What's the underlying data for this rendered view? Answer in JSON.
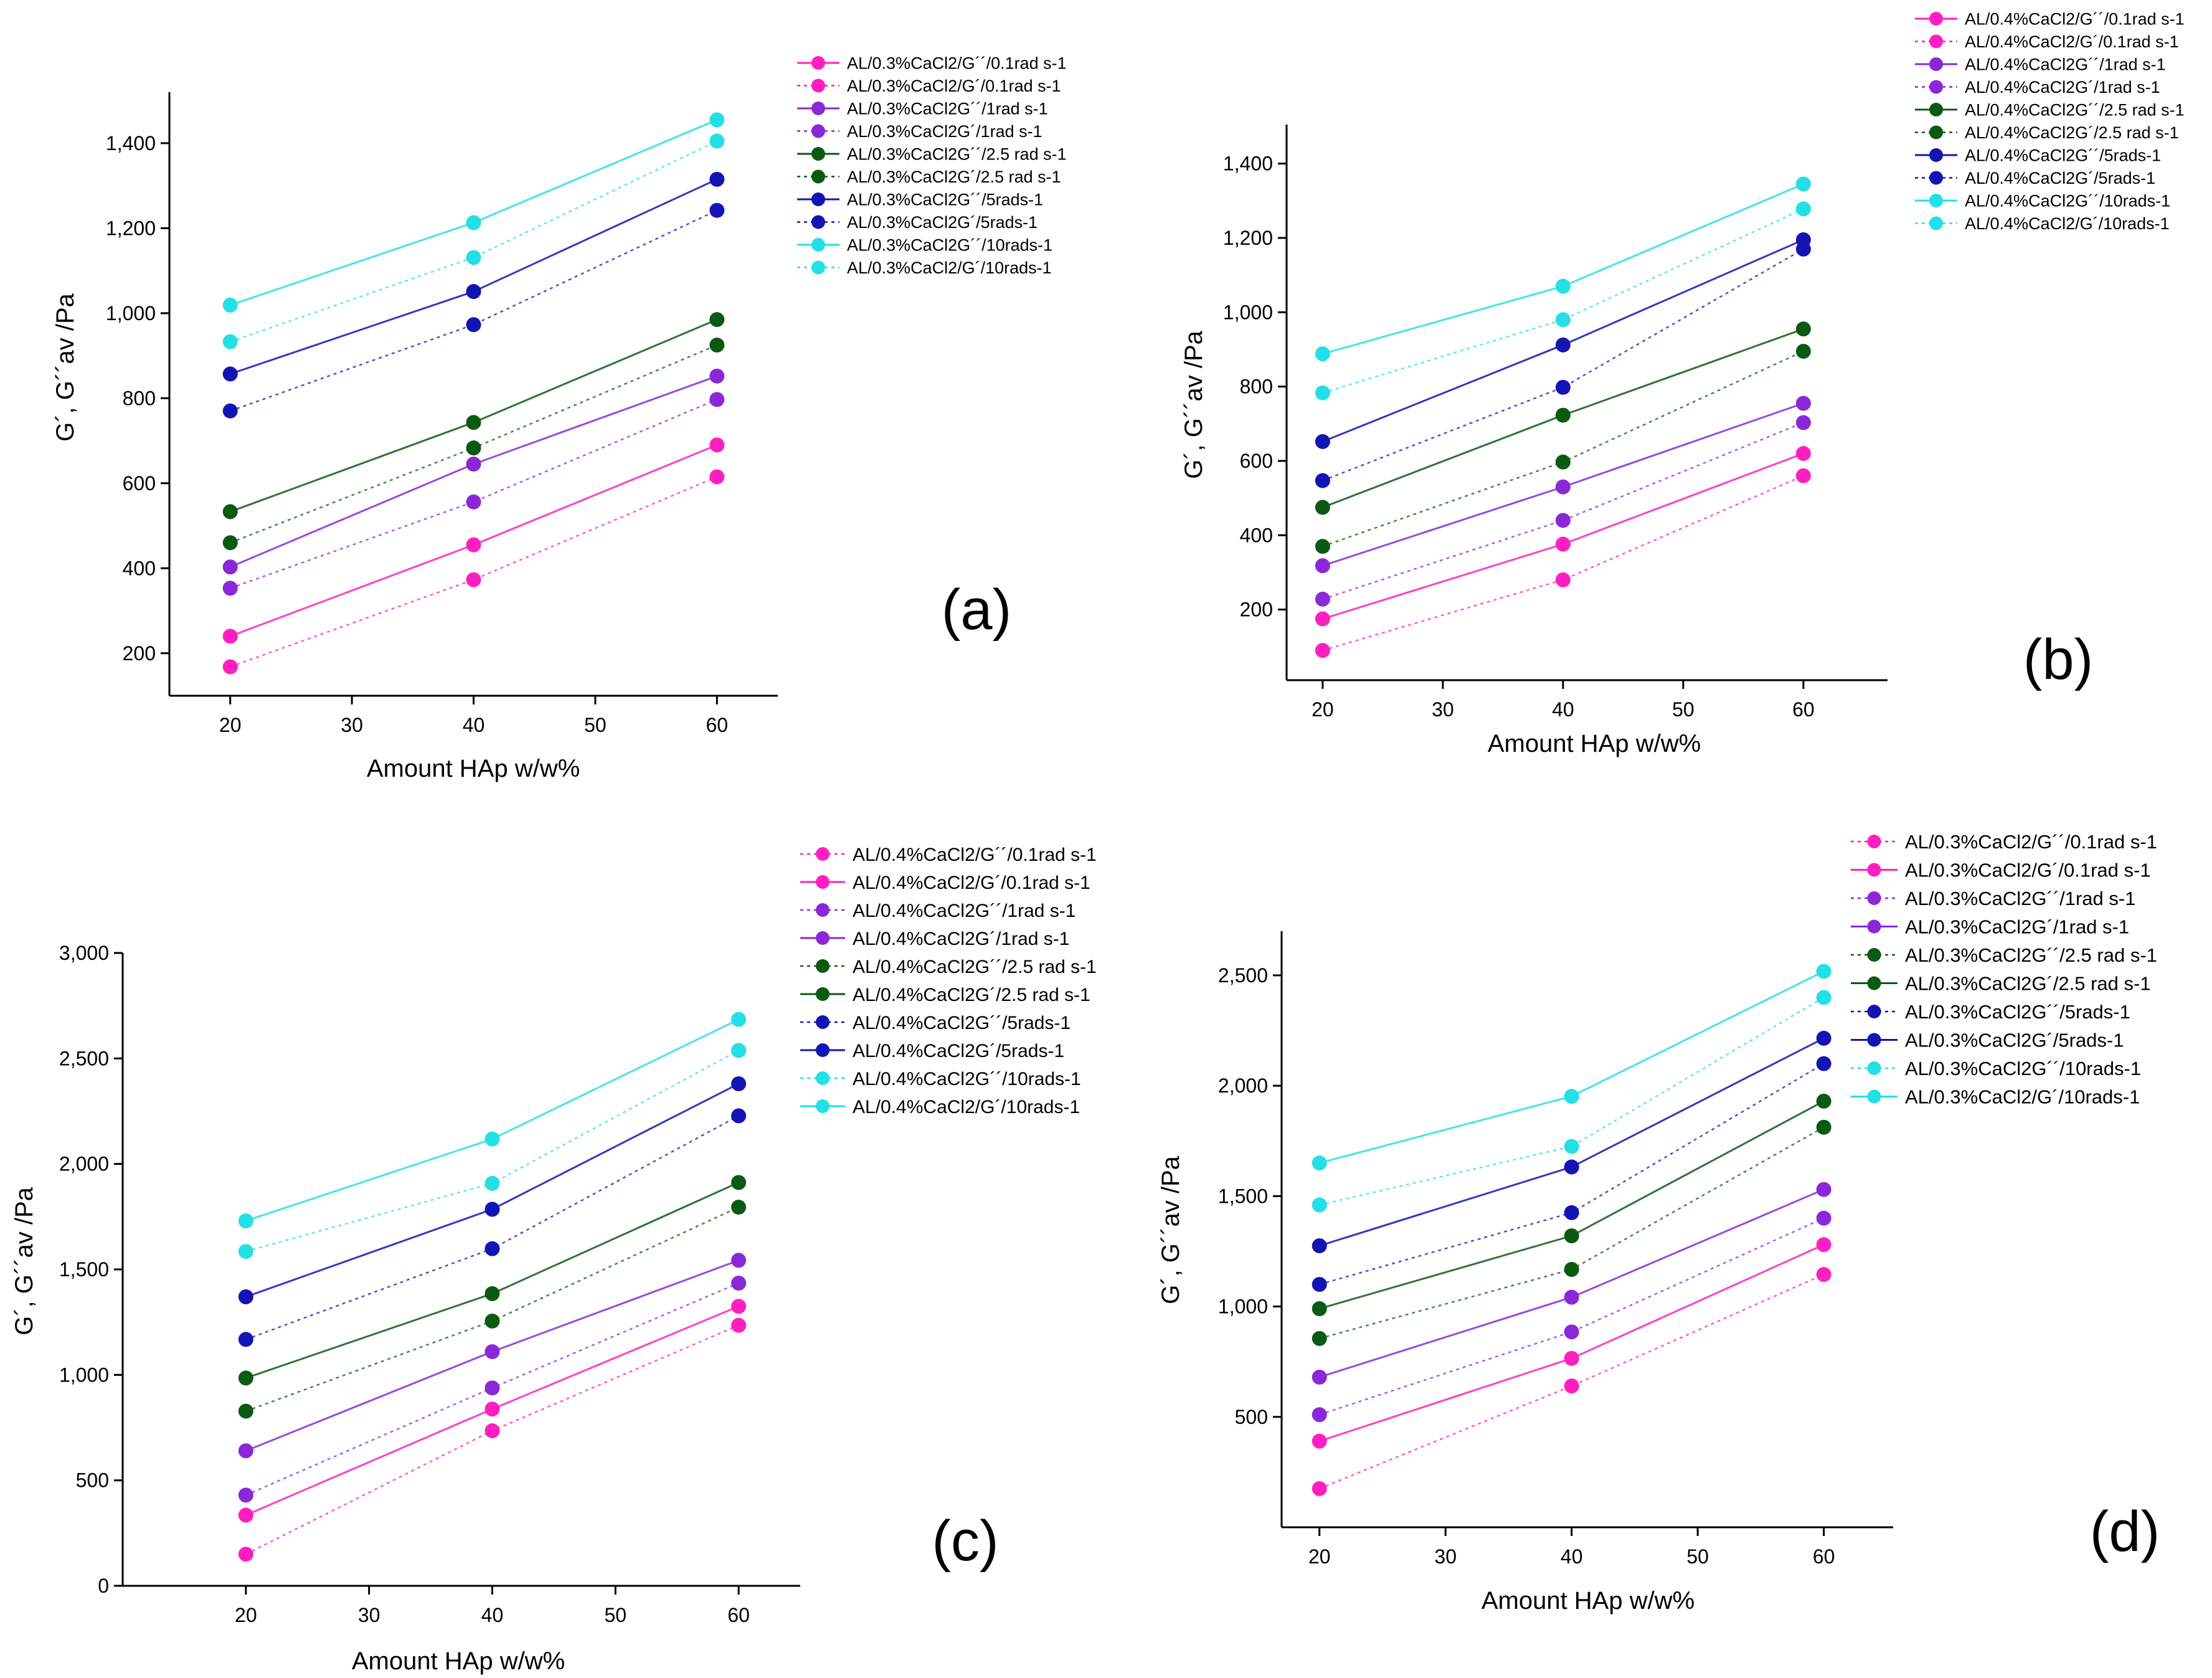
{
  "chart_data": [
    {
      "panel_label": "(a)",
      "type": "line",
      "ylabel": "G´, G´´av /Pa",
      "xlabel": "Amount HAp w/w%",
      "x": [
        20,
        40,
        60
      ],
      "xlim": [
        15,
        65
      ],
      "ylim": [
        100,
        1520
      ],
      "xticks": [
        20,
        30,
        40,
        50,
        60
      ],
      "xtick_labels": [
        "20",
        "30",
        "40",
        "50",
        "60"
      ],
      "yticks": [
        200,
        400,
        600,
        800,
        1000,
        1200,
        1400
      ],
      "ytick_labels": [
        "200",
        "400",
        "600",
        "800",
        "1,000",
        "1,200",
        "1,400"
      ],
      "series": [
        {
          "name": "AL/0.3%CaCl2/G´´/0.1rad s-1",
          "color": "#ff1fc0",
          "dashed": false,
          "values": [
            240,
            455,
            690
          ]
        },
        {
          "name": "AL/0.3%CaCl2/G´/0.1rad s-1",
          "color": "#ff1fc0",
          "dashed": true,
          "values": [
            168,
            373,
            615
          ]
        },
        {
          "name": "AL/0.3%CaCl2G´´/1rad s-1",
          "color": "#8a28d8",
          "dashed": false,
          "values": [
            403,
            645,
            852
          ]
        },
        {
          "name": "AL/0.3%CaCl2G´/1rad s-1",
          "color": "#8a28d8",
          "dashed": true,
          "values": [
            353,
            556,
            797
          ]
        },
        {
          "name": "AL/0.3%CaCl2G´´/2.5 rad s-1",
          "color": "#0a5a14",
          "dashed": false,
          "values": [
            533,
            743,
            985
          ]
        },
        {
          "name": "AL/0.3%CaCl2G´/2.5 rad s-1",
          "color": "#0a5a14",
          "dashed": true,
          "values": [
            460,
            683,
            925
          ]
        },
        {
          "name": "AL/0.3%CaCl2G´´/5rads-1",
          "color": "#1414b4",
          "dashed": false,
          "values": [
            857,
            1051,
            1315
          ]
        },
        {
          "name": "AL/0.3%CaCl2G´/5rads-1",
          "color": "#1414b4",
          "dashed": true,
          "values": [
            770,
            973,
            1242
          ]
        },
        {
          "name": "AL/0.3%CaCl2G´´/10rads-1",
          "color": "#22e0e6",
          "dashed": false,
          "values": [
            1019,
            1213,
            1455
          ]
        },
        {
          "name": "AL/0.3%CaCl2/G´/10rads-1",
          "color": "#22e0e6",
          "dashed": true,
          "values": [
            933,
            1131,
            1405
          ]
        }
      ]
    },
    {
      "panel_label": "(b)",
      "type": "line",
      "ylabel": "G´, G´´av /Pa",
      "xlabel": "Amount HAp w/w%",
      "x": [
        20,
        40,
        60
      ],
      "xlim": [
        17,
        67
      ],
      "ylim": [
        10,
        1505
      ],
      "xticks": [
        20,
        30,
        40,
        50,
        60
      ],
      "xtick_labels": [
        "20",
        "30",
        "40",
        "50",
        "60"
      ],
      "yticks": [
        200,
        400,
        600,
        800,
        1000,
        1200,
        1400
      ],
      "ytick_labels": [
        "200",
        "400",
        "600",
        "800",
        "1,000",
        "1,200",
        "1,400"
      ],
      "series": [
        {
          "name": "AL/0.4%CaCl2/G´´/0.1rad s-1",
          "color": "#ff1fc0",
          "dashed": false,
          "values": [
            175,
            376,
            620
          ]
        },
        {
          "name": "AL/0.4%CaCl2/G´/0.1rad s-1",
          "color": "#ff1fc0",
          "dashed": true,
          "values": [
            90,
            280,
            560
          ]
        },
        {
          "name": "AL/0.4%CaCl2G´´/1rad s-1",
          "color": "#8a28d8",
          "dashed": false,
          "values": [
            318,
            530,
            755
          ]
        },
        {
          "name": "AL/0.4%CaCl2G´/1rad s-1",
          "color": "#8a28d8",
          "dashed": true,
          "values": [
            228,
            440,
            703
          ]
        },
        {
          "name": "AL/0.4%CaCl2G´´/2.5 rad s-1",
          "color": "#0a5a14",
          "dashed": false,
          "values": [
            475,
            723,
            955
          ]
        },
        {
          "name": "AL/0.4%CaCl2G´/2.5 rad s-1",
          "color": "#0a5a14",
          "dashed": true,
          "values": [
            370,
            597,
            895
          ]
        },
        {
          "name": "AL/0.4%CaCl2G´´/5rads-1",
          "color": "#1414b4",
          "dashed": false,
          "values": [
            652,
            912,
            1195
          ]
        },
        {
          "name": "AL/0.4%CaCl2G´/5rads-1",
          "color": "#1414b4",
          "dashed": true,
          "values": [
            547,
            798,
            1170
          ]
        },
        {
          "name": "AL/0.4%CaCl2G´´/10rads-1",
          "color": "#22e0e6",
          "dashed": false,
          "values": [
            888,
            1070,
            1345
          ]
        },
        {
          "name": "AL/0.4%CaCl2/G´/10rads-1",
          "color": "#22e0e6",
          "dashed": true,
          "values": [
            783,
            980,
            1278
          ]
        }
      ]
    },
    {
      "panel_label": "(c)",
      "type": "line",
      "ylabel": "G´, G´´av /Pa",
      "xlabel": "Amount HAp w/w%",
      "x": [
        20,
        40,
        60
      ],
      "xlim": [
        10,
        65
      ],
      "ylim": [
        0,
        3000
      ],
      "xticks": [
        20,
        30,
        40,
        50,
        60
      ],
      "xtick_labels": [
        "20",
        "30",
        "40",
        "50",
        "60"
      ],
      "yticks": [
        0,
        500,
        1000,
        1500,
        2000,
        2500,
        3000
      ],
      "ytick_labels": [
        "0",
        "500",
        "1,000",
        "1,500",
        "2,000",
        "2,500",
        "3,000"
      ],
      "series": [
        {
          "name": "AL/0.4%CaCl2/G´´/0.1rad s-1",
          "color": "#ff1fc0",
          "dashed": true,
          "values": [
            150,
            735,
            1235
          ]
        },
        {
          "name": "AL/0.4%CaCl2/G´/0.1rad s-1",
          "color": "#ff1fc0",
          "dashed": false,
          "values": [
            335,
            838,
            1325
          ]
        },
        {
          "name": "AL/0.4%CaCl2G´´/1rad s-1",
          "color": "#8a28d8",
          "dashed": true,
          "values": [
            430,
            938,
            1435
          ]
        },
        {
          "name": "AL/0.4%CaCl2G´/1rad s-1",
          "color": "#8a28d8",
          "dashed": false,
          "values": [
            640,
            1110,
            1543
          ]
        },
        {
          "name": "AL/0.4%CaCl2G´´/2.5 rad s-1",
          "color": "#0a5a14",
          "dashed": true,
          "values": [
            828,
            1255,
            1795
          ]
        },
        {
          "name": "AL/0.4%CaCl2G´/2.5 rad s-1",
          "color": "#0a5a14",
          "dashed": false,
          "values": [
            985,
            1385,
            1912
          ]
        },
        {
          "name": "AL/0.4%CaCl2G´´/5rads-1",
          "color": "#1414b4",
          "dashed": true,
          "values": [
            1168,
            1598,
            2228
          ]
        },
        {
          "name": "AL/0.4%CaCl2G´/5rads-1",
          "color": "#1414b4",
          "dashed": false,
          "values": [
            1370,
            1785,
            2380
          ]
        },
        {
          "name": "AL/0.4%CaCl2G´´/10rads-1",
          "color": "#22e0e6",
          "dashed": true,
          "values": [
            1585,
            1908,
            2538
          ]
        },
        {
          "name": "AL/0.4%CaCl2/G´/10rads-1",
          "color": "#22e0e6",
          "dashed": false,
          "values": [
            1730,
            2118,
            2685
          ]
        }
      ]
    },
    {
      "panel_label": "(d)",
      "type": "line",
      "ylabel": "G´, G´´av /Pa",
      "xlabel": "Amount HAp w/w%",
      "x": [
        20,
        40,
        60
      ],
      "xlim": [
        17,
        65.5
      ],
      "ylim": [
        0,
        2700
      ],
      "xticks": [
        20,
        30,
        40,
        50,
        60
      ],
      "xtick_labels": [
        "20",
        "30",
        "40",
        "50",
        "60"
      ],
      "yticks": [
        500,
        1000,
        1500,
        2000,
        2500
      ],
      "ytick_labels": [
        "500",
        "1,000",
        "1,500",
        "2,000",
        "2,500"
      ],
      "series": [
        {
          "name": "AL/0.3%CaCl2/G´´/0.1rad s-1",
          "color": "#ff1fc0",
          "dashed": true,
          "values": [
            175,
            640,
            1145
          ]
        },
        {
          "name": "AL/0.3%CaCl2/G´/0.1rad s-1",
          "color": "#ff1fc0",
          "dashed": false,
          "values": [
            390,
            765,
            1280
          ]
        },
        {
          "name": "AL/0.3%CaCl2G´´/1rad s-1",
          "color": "#8a28d8",
          "dashed": true,
          "values": [
            510,
            885,
            1400
          ]
        },
        {
          "name": "AL/0.3%CaCl2G´/1rad s-1",
          "color": "#8a28d8",
          "dashed": false,
          "values": [
            680,
            1042,
            1530
          ]
        },
        {
          "name": "AL/0.3%CaCl2G´´/2.5 rad s-1",
          "color": "#0a5a14",
          "dashed": true,
          "values": [
            855,
            1168,
            1812
          ]
        },
        {
          "name": "AL/0.3%CaCl2G´/2.5 rad s-1",
          "color": "#0a5a14",
          "dashed": false,
          "values": [
            990,
            1320,
            1930
          ]
        },
        {
          "name": "AL/0.3%CaCl2G´´/5rads-1",
          "color": "#1414b4",
          "dashed": true,
          "values": [
            1100,
            1425,
            2100
          ]
        },
        {
          "name": "AL/0.3%CaCl2G´/5rads-1",
          "color": "#1414b4",
          "dashed": false,
          "values": [
            1275,
            1632,
            2215
          ]
        },
        {
          "name": "AL/0.3%CaCl2G´´/10rads-1",
          "color": "#22e0e6",
          "dashed": true,
          "values": [
            1460,
            1725,
            2400
          ]
        },
        {
          "name": "AL/0.3%CaCl2/G´/10rads-1",
          "color": "#22e0e6",
          "dashed": false,
          "values": [
            1650,
            1952,
            2518
          ]
        }
      ]
    }
  ]
}
